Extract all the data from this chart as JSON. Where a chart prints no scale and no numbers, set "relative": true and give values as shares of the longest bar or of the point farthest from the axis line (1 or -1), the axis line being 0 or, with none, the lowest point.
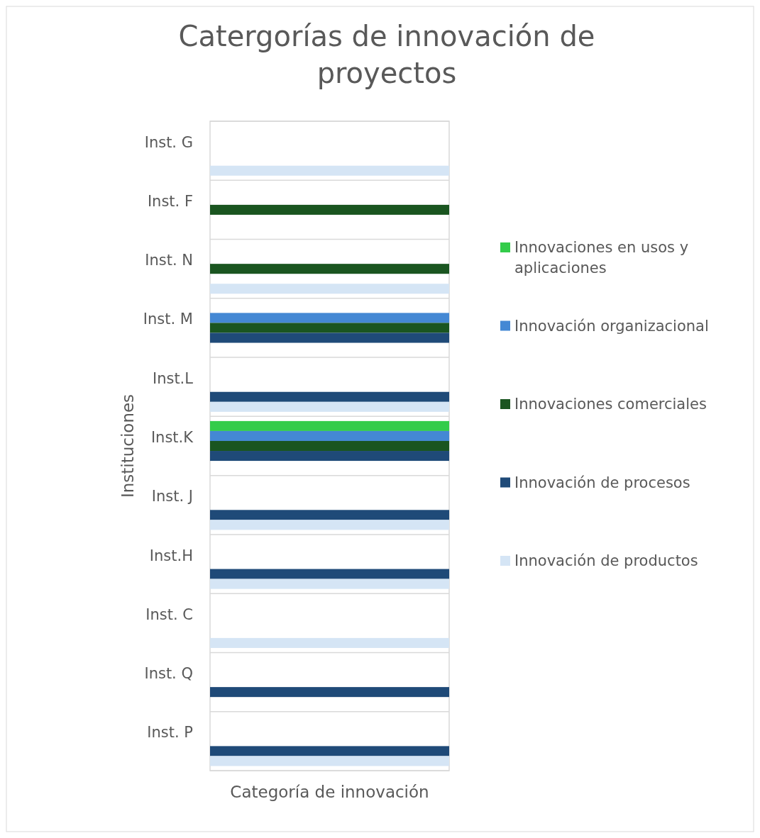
{
  "chart_data": {
    "type": "bar",
    "orientation": "horizontal",
    "relative": true,
    "title": "Catergorías de innovación de proyectos",
    "xlabel": "Categoría de innovación",
    "ylabel": "Instituciones",
    "grid": "y",
    "legend": "right",
    "categories": [
      "Inst. G",
      "Inst. F",
      "Inst. N",
      "Inst. M",
      "Inst.L",
      "Inst.K",
      "Inst. J",
      "Inst.H",
      "Inst. C",
      "Inst. Q",
      "Inst. P"
    ],
    "series": [
      {
        "name": "Innovaciones en usos y aplicaciones",
        "color": "#33cc4a",
        "values": [
          null,
          null,
          null,
          null,
          null,
          1,
          null,
          null,
          null,
          null,
          null
        ]
      },
      {
        "name": "Innovación organizacional",
        "color": "#4488d4",
        "values": [
          null,
          null,
          null,
          1,
          null,
          1,
          null,
          null,
          null,
          null,
          null
        ]
      },
      {
        "name": "Innovaciones comerciales",
        "color": "#1a5520",
        "values": [
          null,
          1,
          1,
          1,
          null,
          1,
          null,
          null,
          null,
          null,
          null
        ]
      },
      {
        "name": "Innovación de procesos",
        "color": "#1f4a78",
        "values": [
          null,
          null,
          null,
          1,
          1,
          1,
          1,
          1,
          null,
          1,
          1
        ]
      },
      {
        "name": "Innovación de productos",
        "color": "#d5e5f5",
        "values": [
          1,
          null,
          1,
          null,
          1,
          null,
          1,
          1,
          1,
          null,
          1
        ]
      }
    ]
  }
}
